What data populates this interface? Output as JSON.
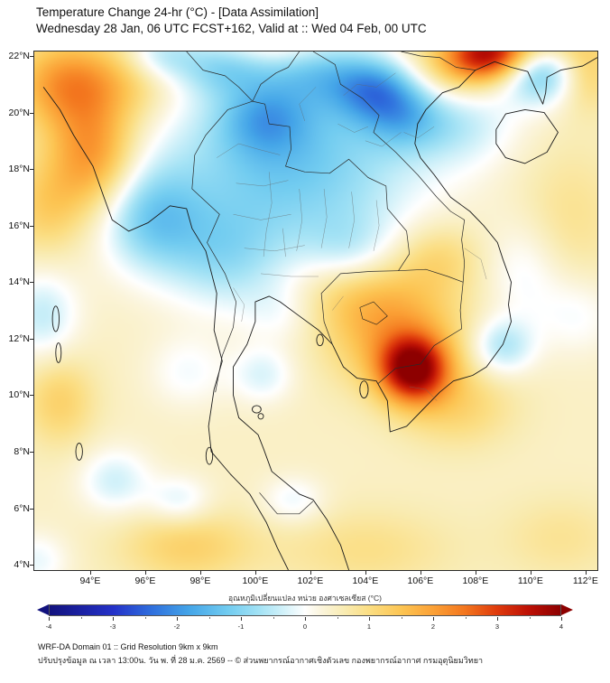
{
  "header": {
    "title": "Temperature Change 24-hr (°C) - [Data Assimilation]",
    "subtitle": "Wednesday 28 Jan, 06 UTC FCST+162, Valid at :: Wed 04 Feb, 00 UTC"
  },
  "map": {
    "extent": {
      "lon_min": 91.97,
      "lon_max": 112.43,
      "lat_min": 3.81,
      "lat_max": 22.16
    }
  },
  "axes": {
    "x": {
      "values": [
        94,
        96,
        98,
        100,
        102,
        104,
        106,
        108,
        110,
        112
      ],
      "labels": [
        "94°E",
        "96°E",
        "98°E",
        "100°E",
        "102°E",
        "104°E",
        "106°E",
        "108°E",
        "110°E",
        "112°E"
      ]
    },
    "y": {
      "values": [
        4,
        6,
        8,
        10,
        12,
        14,
        16,
        18,
        20,
        22
      ],
      "labels": [
        "4°N",
        "6°N",
        "8°N",
        "10°N",
        "12°N",
        "14°N",
        "16°N",
        "18°N",
        "20°N",
        "22°N"
      ]
    }
  },
  "field": {
    "base": 0.45,
    "colormap": [
      [
        -4.0,
        "#12127e"
      ],
      [
        -3.0,
        "#2431c8"
      ],
      [
        -2.4,
        "#2f6fdd"
      ],
      [
        -1.8,
        "#45a6e8"
      ],
      [
        -1.2,
        "#72ccf0"
      ],
      [
        -0.7,
        "#a5e3f5"
      ],
      [
        -0.3,
        "#d7f3fa"
      ],
      [
        0.0,
        "#ffffff"
      ],
      [
        0.25,
        "#fbf5dd"
      ],
      [
        0.6,
        "#f9ecb4"
      ],
      [
        1.0,
        "#fbde83"
      ],
      [
        1.5,
        "#fcc553"
      ],
      [
        2.0,
        "#fba136"
      ],
      [
        2.5,
        "#f3761e"
      ],
      [
        3.0,
        "#df3b0c"
      ],
      [
        3.5,
        "#bd1005"
      ],
      [
        4.0,
        "#8d0000"
      ]
    ],
    "blobs": [
      [
        101.3,
        18.2,
        3.2,
        2.4,
        -1.7
      ],
      [
        100.4,
        19.7,
        1.1,
        0.9,
        -1.1
      ],
      [
        104.4,
        20.7,
        1.1,
        0.8,
        -1.9
      ],
      [
        105.4,
        19.7,
        1.0,
        0.8,
        -1.0
      ],
      [
        102.3,
        21.3,
        1.3,
        0.8,
        -0.9
      ],
      [
        98.8,
        21.5,
        1.2,
        0.7,
        -1.0
      ],
      [
        96.6,
        21.9,
        0.9,
        0.6,
        -0.9
      ],
      [
        96.3,
        16.2,
        1.3,
        1.3,
        -1.4
      ],
      [
        98.9,
        14.8,
        1.5,
        1.3,
        -0.9
      ],
      [
        110.3,
        21.3,
        1.1,
        0.8,
        -1.8
      ],
      [
        107.4,
        19.6,
        1.4,
        1.1,
        -0.8
      ],
      [
        108.9,
        11.7,
        0.8,
        0.7,
        -1.1
      ],
      [
        109.7,
        14.3,
        1.0,
        1.3,
        -0.55
      ],
      [
        95.0,
        7.0,
        0.9,
        0.8,
        -0.8
      ],
      [
        97.3,
        6.3,
        0.8,
        0.6,
        -0.7
      ],
      [
        100.3,
        10.7,
        0.8,
        0.7,
        -0.7
      ],
      [
        101.4,
        6.3,
        0.8,
        0.6,
        -0.6
      ],
      [
        92.4,
        12.8,
        0.9,
        1.1,
        -0.9
      ],
      [
        92.2,
        4.2,
        0.8,
        0.7,
        -0.6
      ],
      [
        103.4,
        15.0,
        1.1,
        0.9,
        -0.6
      ],
      [
        101.0,
        12.9,
        1.0,
        0.8,
        -0.45
      ],
      [
        97.6,
        10.8,
        1.0,
        0.9,
        -0.5
      ],
      [
        111.6,
        12.8,
        1.0,
        1.0,
        -0.5
      ],
      [
        108.4,
        21.9,
        1.0,
        0.65,
        2.6
      ],
      [
        107.0,
        21.4,
        1.5,
        0.9,
        1.0
      ],
      [
        110.0,
        22.3,
        1.5,
        0.55,
        0.9
      ],
      [
        111.8,
        21.3,
        0.8,
        0.9,
        1.1
      ],
      [
        93.2,
        20.9,
        1.3,
        1.1,
        1.6
      ],
      [
        95.5,
        21.0,
        1.3,
        1.0,
        0.7
      ],
      [
        94.2,
        18.4,
        1.1,
        1.4,
        1.7
      ],
      [
        92.5,
        16.6,
        1.0,
        1.2,
        0.8
      ],
      [
        105.7,
        10.9,
        0.85,
        0.8,
        3.2
      ],
      [
        105.1,
        12.1,
        1.7,
        1.3,
        1.3
      ],
      [
        103.6,
        13.6,
        1.7,
        1.0,
        0.8
      ],
      [
        107.3,
        9.6,
        1.4,
        1.0,
        0.7
      ],
      [
        97.6,
        4.7,
        1.7,
        0.9,
        0.8
      ],
      [
        104.0,
        4.6,
        2.2,
        1.0,
        0.5
      ],
      [
        93.0,
        9.8,
        0.9,
        1.1,
        0.8
      ],
      [
        100.6,
        22.2,
        1.4,
        0.5,
        0.5
      ],
      [
        111.3,
        16.2,
        1.3,
        1.8,
        0.45
      ],
      [
        106.6,
        14.8,
        1.1,
        0.9,
        0.7
      ],
      [
        111.0,
        5.0,
        1.5,
        1.0,
        0.4
      ]
    ]
  },
  "colorbar": {
    "title": "อุณหภูมิเปลี่ยนแปลง หน่วย องศาเซลเซียส (°C)",
    "min": -4,
    "max": 4,
    "ticks": [
      {
        "value": -4,
        "label": "-4"
      },
      {
        "value": -3,
        "label": "-3"
      },
      {
        "value": -2,
        "label": "-2"
      },
      {
        "value": -1,
        "label": "-1"
      },
      {
        "value": 0,
        "label": "0"
      },
      {
        "value": 1,
        "label": "1"
      },
      {
        "value": 2,
        "label": "2"
      },
      {
        "value": 3,
        "label": "3"
      },
      {
        "value": 4,
        "label": "4"
      }
    ]
  },
  "footer": {
    "line1": "WRF-DA Domain 01 :: Grid Resolution 9km x 9km",
    "line2": "ปรับปรุงข้อมูล ณ เวลา 13:00น. วัน พ. ที่ 28 ม.ค. 2569 -- © ส่วนพยากรณ์อากาศเชิงตัวเลข กองพยากรณ์อากาศ กรมอุตุนิยมวิทยา"
  }
}
